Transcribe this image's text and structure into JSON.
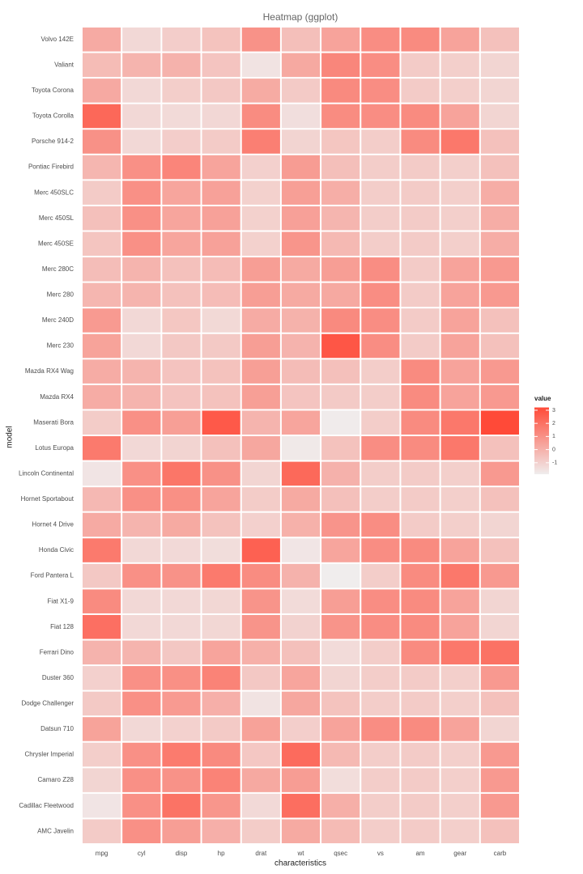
{
  "chart_data": {
    "type": "heatmap",
    "title": "Heatmap (ggplot)",
    "x_label": "characteristics",
    "y_label": "model",
    "columns": [
      "mpg",
      "cyl",
      "disp",
      "hp",
      "drat",
      "wt",
      "qsec",
      "vs",
      "am",
      "gear",
      "carb"
    ],
    "rows": [
      "Volvo 142E",
      "Valiant",
      "Toyota Corona",
      "Toyota Corolla",
      "Porsche 914-2",
      "Pontiac Firebird",
      "Merc 450SLC",
      "Merc 450SL",
      "Merc 450SE",
      "Merc 280C",
      "Merc 280",
      "Merc 240D",
      "Merc 230",
      "Mazda RX4 Wag",
      "Mazda RX4",
      "Maserati Bora",
      "Lotus Europa",
      "Lincoln Continental",
      "Hornet Sportabout",
      "Hornet 4 Drive",
      "Honda Civic",
      "Ford Pantera L",
      "Fiat X1-9",
      "Fiat 128",
      "Ferrari Dino",
      "Duster 360",
      "Dodge Challenger",
      "Datsun 710",
      "Chrysler Imperial",
      "Camaro Z28",
      "Cadillac Fleetwood",
      "AMC Javelin"
    ],
    "values": [
      [
        0.217,
        -1.225,
        -0.885,
        -0.55,
        0.96,
        -0.447,
        0.42,
        1.116,
        1.19,
        0.424,
        -0.503
      ],
      [
        -0.33,
        -0.105,
        -0.046,
        -0.608,
        -1.564,
        0.248,
        1.327,
        1.116,
        -0.814,
        -0.932,
        -1.122
      ],
      [
        0.234,
        -1.225,
        -0.893,
        -0.725,
        0.193,
        -0.769,
        1.209,
        1.116,
        -0.814,
        -0.932,
        -1.122
      ],
      [
        2.291,
        -1.225,
        -1.288,
        -1.191,
        1.166,
        -1.412,
        1.148,
        1.116,
        1.19,
        0.424,
        -1.122
      ],
      [
        0.984,
        -1.225,
        -0.891,
        -0.812,
        1.559,
        -1.1,
        -0.643,
        -0.868,
        1.19,
        1.779,
        -0.503
      ],
      [
        -0.148,
        1.015,
        1.366,
        0.413,
        -0.966,
        0.641,
        -0.447,
        -0.868,
        -0.814,
        -0.932,
        -0.503
      ],
      [
        -0.811,
        1.015,
        0.364,
        0.486,
        -0.985,
        0.575,
        0.085,
        -0.868,
        -0.814,
        -0.932,
        0.116
      ],
      [
        -0.463,
        1.015,
        0.364,
        0.486,
        -0.985,
        0.524,
        -0.139,
        -0.868,
        -0.814,
        -0.932,
        0.116
      ],
      [
        -0.612,
        1.015,
        0.364,
        0.486,
        -0.985,
        0.871,
        -0.251,
        -0.868,
        -0.814,
        -0.932,
        0.116
      ],
      [
        -0.38,
        -0.105,
        -0.509,
        -0.345,
        0.605,
        0.228,
        0.588,
        1.116,
        -0.814,
        0.424,
        0.735
      ],
      [
        -0.148,
        -0.105,
        -0.509,
        -0.345,
        0.605,
        0.228,
        0.253,
        1.116,
        -0.814,
        0.424,
        0.735
      ],
      [
        0.715,
        -1.225,
        -0.678,
        -1.235,
        0.175,
        -0.028,
        1.204,
        1.116,
        -0.814,
        0.424,
        -0.503
      ],
      [
        0.45,
        -1.225,
        -0.726,
        -0.754,
        0.605,
        -0.069,
        2.827,
        1.116,
        -0.814,
        0.424,
        -0.503
      ],
      [
        0.151,
        -0.105,
        -0.571,
        -0.535,
        0.567,
        -0.35,
        -0.464,
        -0.868,
        1.19,
        0.424,
        0.735
      ],
      [
        0.151,
        -0.105,
        -0.571,
        -0.535,
        0.567,
        -0.61,
        -0.777,
        -0.868,
        1.19,
        0.424,
        0.735
      ],
      [
        -0.845,
        1.015,
        0.567,
        2.747,
        -0.106,
        0.361,
        -1.818,
        -0.868,
        1.19,
        1.779,
        3.212
      ],
      [
        1.711,
        -1.225,
        -1.094,
        -0.491,
        0.324,
        -1.742,
        -0.531,
        1.116,
        1.19,
        1.779,
        -0.503
      ],
      [
        -1.608,
        1.015,
        1.85,
        0.996,
        -1.116,
        2.255,
        -0.016,
        -0.868,
        -0.814,
        -0.932,
        0.735
      ],
      [
        -0.231,
        1.015,
        1.043,
        0.413,
        -0.835,
        0.228,
        -0.464,
        -0.868,
        -0.814,
        -0.932,
        -0.503
      ],
      [
        0.217,
        -0.105,
        0.22,
        -0.535,
        -0.966,
        -0.002,
        0.89,
        1.116,
        -0.814,
        -0.932,
        -1.122
      ],
      [
        1.711,
        -1.225,
        -1.251,
        -1.381,
        2.494,
        -1.637,
        0.376,
        1.116,
        1.19,
        0.424,
        -0.503
      ],
      [
        -0.712,
        1.015,
        0.97,
        1.711,
        1.166,
        -0.048,
        -1.874,
        -0.868,
        1.19,
        1.779,
        0.735
      ],
      [
        1.196,
        -1.225,
        -1.224,
        -1.177,
        0.904,
        -1.31,
        0.588,
        1.116,
        1.19,
        0.424,
        -1.122
      ],
      [
        2.042,
        -1.225,
        -1.227,
        -1.177,
        0.904,
        -1.04,
        0.907,
        1.116,
        1.19,
        0.424,
        -1.122
      ],
      [
        -0.065,
        -0.105,
        -0.692,
        0.413,
        0.044,
        -0.457,
        -1.314,
        -0.868,
        1.19,
        1.779,
        1.974
      ],
      [
        -0.961,
        1.015,
        1.043,
        1.433,
        -0.723,
        0.361,
        -1.124,
        -0.868,
        -0.814,
        -0.932,
        0.735
      ],
      [
        -0.761,
        1.015,
        0.704,
        0.048,
        -1.564,
        0.309,
        -0.548,
        -0.868,
        -0.814,
        -0.932,
        -0.503
      ],
      [
        0.45,
        -1.225,
        -0.99,
        -0.783,
        0.474,
        -0.917,
        0.426,
        1.116,
        1.19,
        0.424,
        -1.122
      ],
      [
        -0.894,
        1.015,
        1.689,
        1.215,
        -0.685,
        2.175,
        -0.24,
        -0.868,
        -0.814,
        -0.932,
        0.735
      ],
      [
        -1.126,
        1.015,
        0.962,
        1.433,
        0.249,
        0.636,
        -1.365,
        -0.868,
        -0.814,
        -0.932,
        0.735
      ],
      [
        -1.608,
        1.015,
        1.947,
        0.851,
        -1.246,
        2.077,
        0.073,
        -0.868,
        -0.814,
        -0.932,
        0.735
      ],
      [
        -0.811,
        1.015,
        0.591,
        0.048,
        -0.835,
        0.223,
        -0.307,
        -0.868,
        -0.814,
        -0.932,
        -0.503
      ]
    ],
    "legend_title": "value",
    "legend_ticks": [
      3,
      2,
      1,
      0,
      -1
    ],
    "low_color": "#f0eded",
    "high_color": "#ff4a38"
  }
}
